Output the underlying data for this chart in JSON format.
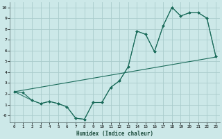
{
  "xlabel": "Humidex (Indice chaleur)",
  "background_color": "#cce8e8",
  "grid_color": "#aacccc",
  "line_color": "#1a6b5a",
  "xlim": [
    -0.5,
    23.5
  ],
  "ylim": [
    -0.65,
    10.5
  ],
  "xticks": [
    0,
    1,
    2,
    3,
    4,
    5,
    6,
    7,
    8,
    9,
    10,
    11,
    12,
    13,
    14,
    15,
    16,
    17,
    18,
    19,
    20,
    21,
    22,
    23
  ],
  "yticks": [
    0,
    1,
    2,
    3,
    4,
    5,
    6,
    7,
    8,
    9,
    10
  ],
  "ytick_labels": [
    "-0",
    "1",
    "2",
    "3",
    "4",
    "5",
    "6",
    "7",
    "8",
    "9",
    "10"
  ],
  "line1_x": [
    0,
    1,
    2,
    3,
    4,
    5,
    6,
    7,
    8,
    9,
    10,
    11,
    12,
    13,
    14,
    15,
    16,
    17,
    18,
    19,
    20,
    21,
    22,
    23
  ],
  "line1_y": [
    2.2,
    2.1,
    1.4,
    1.1,
    1.3,
    1.1,
    0.8,
    -0.25,
    -0.35,
    1.2,
    1.2,
    2.6,
    3.2,
    4.5,
    7.8,
    7.5,
    5.9,
    8.3,
    10.0,
    9.2,
    9.5,
    9.5,
    9.0,
    5.5
  ],
  "line2_x": [
    0,
    2,
    3,
    4,
    5,
    6,
    7,
    8,
    9,
    10,
    11,
    12,
    13,
    14,
    15,
    16,
    17,
    18,
    19,
    20,
    21,
    22,
    23
  ],
  "line2_y": [
    2.2,
    1.4,
    1.1,
    1.3,
    1.1,
    0.8,
    -0.25,
    -0.35,
    1.2,
    1.2,
    2.6,
    3.2,
    4.5,
    7.8,
    7.5,
    5.9,
    8.3,
    10.0,
    9.2,
    9.5,
    9.5,
    9.0,
    5.5
  ],
  "line3_x": [
    0,
    23
  ],
  "line3_y": [
    2.2,
    5.4
  ]
}
